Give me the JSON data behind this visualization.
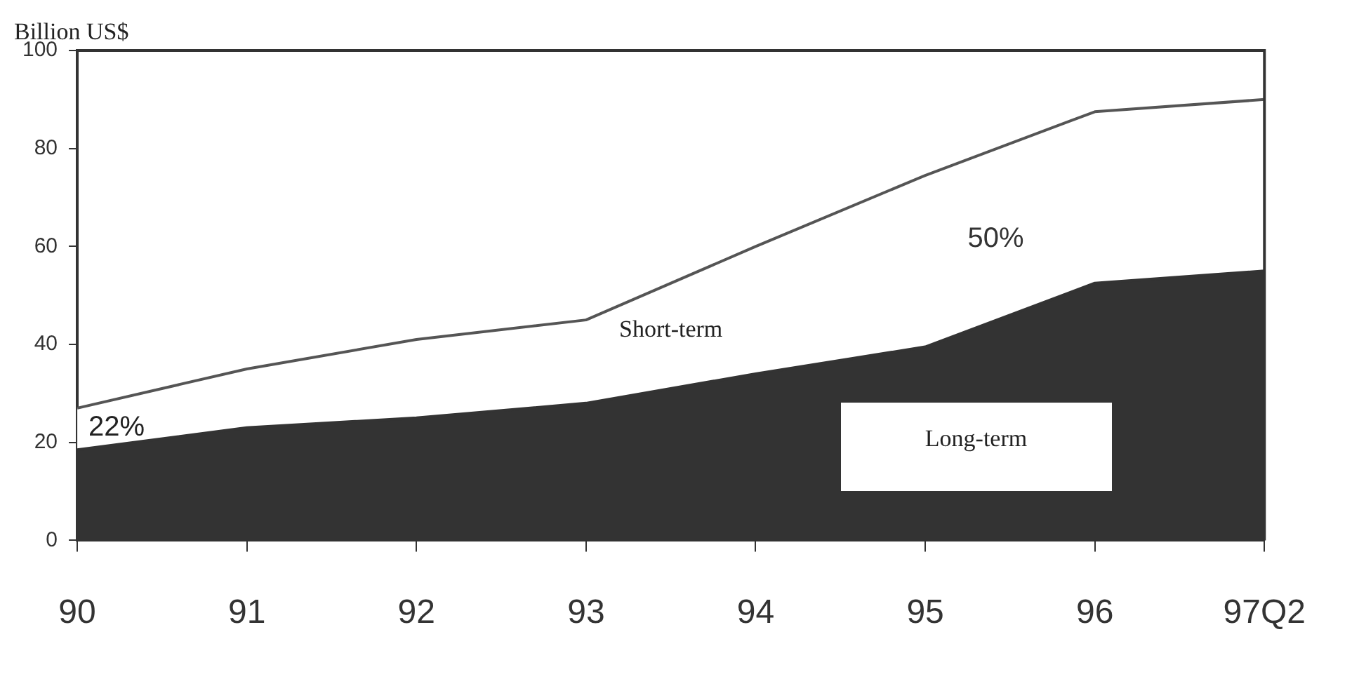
{
  "chart_data": {
    "type": "area",
    "ylabel": "Billion US$",
    "categories": [
      "90",
      "91",
      "92",
      "93",
      "94",
      "95",
      "96",
      "97Q2"
    ],
    "stacked": true,
    "series": [
      {
        "name": "Long-term",
        "color": "#333333",
        "values": [
          18.5,
          23,
          25,
          28,
          34,
          39.5,
          52.5,
          55
        ]
      },
      {
        "name": "Short-term",
        "color": "#ffffff",
        "values": [
          8.5,
          12,
          16,
          17,
          26,
          35,
          35,
          35
        ]
      }
    ],
    "ylim": [
      0,
      100
    ],
    "yticks": [
      0,
      20,
      40,
      60,
      80,
      100
    ],
    "grid": false,
    "legend": false,
    "annotations": [
      "22%",
      "50%"
    ]
  }
}
